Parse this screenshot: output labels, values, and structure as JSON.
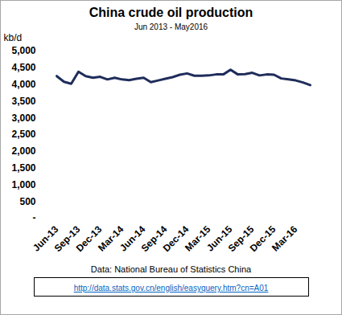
{
  "chart_data": {
    "type": "line",
    "title": "China crude oil production",
    "subtitle": "Jun 2013 - May2016",
    "y_label": "kb/d",
    "source": "Data:  National Bureau of Statistics China",
    "source_url": "http://data.stats.gov.cn/english/easyquery.htm?cn=A01",
    "categories": [
      "Jun-13",
      null,
      null,
      "Sep-13",
      null,
      null,
      "Dec-13",
      null,
      null,
      "Mar-14",
      null,
      null,
      "Jun-14",
      null,
      null,
      "Sep-14",
      null,
      null,
      "Dec-14",
      null,
      null,
      "Mar-15",
      null,
      null,
      "Jun-15",
      null,
      null,
      "Sep-15",
      null,
      null,
      "Dec-15",
      null,
      null,
      "Mar-16",
      null,
      null
    ],
    "values": [
      4250,
      4080,
      4020,
      4380,
      4250,
      4200,
      4230,
      4150,
      4200,
      4150,
      4130,
      4170,
      4200,
      4070,
      4120,
      4170,
      4220,
      4290,
      4330,
      4260,
      4260,
      4270,
      4300,
      4300,
      4440,
      4300,
      4310,
      4350,
      4270,
      4300,
      4290,
      4180,
      4150,
      4120,
      4060,
      3980
    ],
    "color": "#1f2d5a",
    "ylim": [
      0,
      5000
    ],
    "yticks": [
      {
        "value": 0,
        "label": "-"
      },
      500,
      {
        "value": 1000,
        "label": "1,000"
      },
      {
        "value": 1500,
        "label": "1,500"
      },
      {
        "value": 2000,
        "label": "2,000"
      },
      {
        "value": 2500,
        "label": "2,500"
      },
      {
        "value": 3000,
        "label": "3,000"
      },
      {
        "value": 3500,
        "label": "3,500"
      },
      {
        "value": 4000,
        "label": "4,000"
      },
      {
        "value": 4500,
        "label": "4,500"
      },
      {
        "value": 5000,
        "label": "5,000"
      }
    ],
    "grid": false
  }
}
